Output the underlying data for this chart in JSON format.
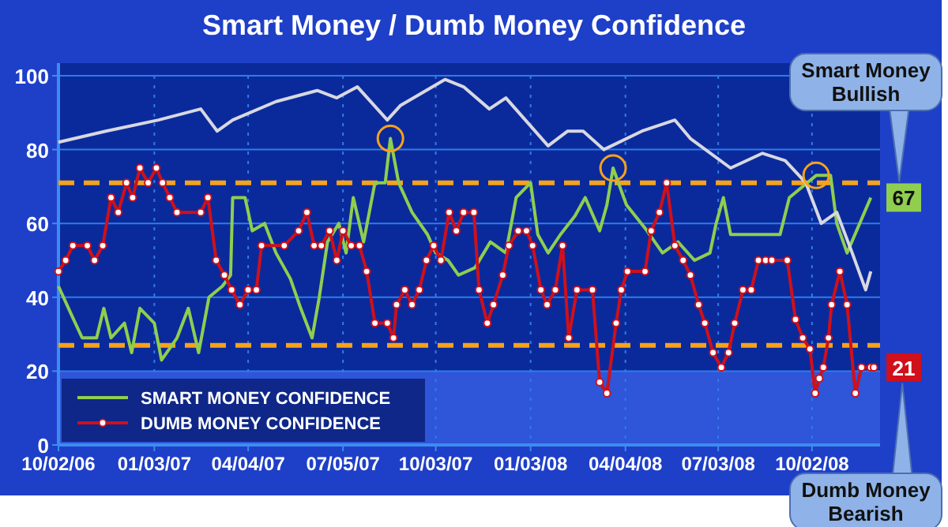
{
  "chart_data": {
    "type": "line",
    "title": "Smart Money / Dumb Money Confidence",
    "xlim": [
      "2006-10-02",
      "2008-12-07"
    ],
    "xticks": [
      {
        "value": "2006-10-02",
        "label": "10/02/06"
      },
      {
        "value": "2007-01-03",
        "label": "01/03/07"
      },
      {
        "value": "2007-04-04",
        "label": "04/04/07"
      },
      {
        "value": "2007-07-05",
        "label": "07/05/07"
      },
      {
        "value": "2007-10-03",
        "label": "10/03/07"
      },
      {
        "value": "2008-01-03",
        "label": "01/03/08"
      },
      {
        "value": "2008-04-04",
        "label": "04/04/08"
      },
      {
        "value": "2008-07-03",
        "label": "07/03/08"
      },
      {
        "value": "2008-10-02",
        "label": "10/02/08"
      }
    ],
    "ylim": [
      0,
      100
    ],
    "yticks": [
      0,
      20,
      40,
      60,
      80,
      100
    ],
    "grid": true,
    "legend": "bottom left",
    "ref_lines": [
      {
        "axis": "y",
        "value": 71,
        "color": "#f7a21b",
        "line_style": "dashed"
      },
      {
        "axis": "y",
        "value": 27,
        "color": "#f7a21b",
        "line_style": "dashed"
      }
    ],
    "bands": [
      {
        "axis": "y",
        "from": 0,
        "to": 20,
        "color": "#2f55d8"
      }
    ],
    "annotations": [
      "Smart Money Bullish",
      {
        "text": "67",
        "x": "2008-11-28",
        "y": 67
      },
      "Dumb Money Bearish",
      {
        "text": "21",
        "x": "2008-12-01",
        "y": 21
      }
    ],
    "series": [
      {
        "name": "SMART MONEY CONFIDENCE",
        "color": "#8fce4f",
        "marker": "none",
        "x": [
          "2006-10-02",
          "2006-10-15",
          "2006-10-25",
          "2006-11-08",
          "2006-11-15",
          "2006-11-22",
          "2006-12-05",
          "2006-12-12",
          "2006-12-20",
          "2007-01-03",
          "2007-01-10",
          "2007-01-25",
          "2007-02-05",
          "2007-02-15",
          "2007-02-25",
          "2007-03-10",
          "2007-03-18",
          "2007-03-20",
          "2007-04-01",
          "2007-04-08",
          "2007-04-20",
          "2007-05-01",
          "2007-05-15",
          "2007-05-25",
          "2007-06-05",
          "2007-06-12",
          "2007-06-20",
          "2007-07-01",
          "2007-07-08",
          "2007-07-15",
          "2007-07-25",
          "2007-08-05",
          "2007-08-15",
          "2007-08-20",
          "2007-08-28",
          "2007-09-10",
          "2007-09-25",
          "2007-10-03",
          "2007-10-15",
          "2007-10-25",
          "2007-11-10",
          "2007-11-25",
          "2007-12-10",
          "2007-12-20",
          "2008-01-03",
          "2008-01-10",
          "2008-01-20",
          "2008-02-01",
          "2008-02-15",
          "2008-02-25",
          "2008-03-10",
          "2008-03-17",
          "2008-03-23",
          "2008-04-05",
          "2008-04-25",
          "2008-05-10",
          "2008-05-25",
          "2008-06-10",
          "2008-06-25",
          "2008-07-01",
          "2008-07-08",
          "2008-07-15",
          "2008-09-01",
          "2008-09-10",
          "2008-10-06",
          "2008-10-20",
          "2008-10-26",
          "2008-11-05",
          "2008-11-28"
        ],
        "values": [
          43,
          35,
          29,
          29,
          37,
          29,
          33,
          25,
          37,
          33,
          23,
          29,
          37,
          25,
          40,
          43,
          46,
          67,
          67,
          58,
          60,
          52,
          45,
          37,
          29,
          40,
          55,
          60,
          52,
          67,
          55,
          71,
          71,
          83,
          71,
          63,
          57,
          52,
          50,
          46,
          48,
          55,
          52,
          67,
          71,
          57,
          52,
          57,
          62,
          67,
          58,
          65,
          75,
          65,
          58,
          52,
          55,
          50,
          52,
          60,
          67,
          57,
          57,
          67,
          73,
          73,
          60,
          52,
          67
        ]
      },
      {
        "name": "DUMB MONEY CONFIDENCE",
        "color": "#d0101a",
        "marker": "circle",
        "x": [
          "2006-10-02",
          "2006-10-09",
          "2006-10-16",
          "2006-10-30",
          "2006-11-06",
          "2006-11-14",
          "2006-11-22",
          "2006-11-29",
          "2006-12-07",
          "2006-12-13",
          "2006-12-20",
          "2006-12-28",
          "2007-01-05",
          "2007-01-11",
          "2007-01-18",
          "2007-01-25",
          "2007-02-17",
          "2007-02-24",
          "2007-03-04",
          "2007-03-12",
          "2007-03-19",
          "2007-03-27",
          "2007-04-04",
          "2007-04-12",
          "2007-04-17",
          "2007-05-09",
          "2007-05-23",
          "2007-05-31",
          "2007-06-07",
          "2007-06-14",
          "2007-06-22",
          "2007-06-29",
          "2007-07-05",
          "2007-07-13",
          "2007-07-21",
          "2007-07-28",
          "2007-08-05",
          "2007-08-17",
          "2007-08-23",
          "2007-08-26",
          "2007-09-03",
          "2007-09-10",
          "2007-09-17",
          "2007-09-24",
          "2007-10-01",
          "2007-10-08",
          "2007-10-16",
          "2007-10-23",
          "2007-10-30",
          "2007-11-09",
          "2007-11-14",
          "2007-11-22",
          "2007-11-28",
          "2007-12-07",
          "2007-12-13",
          "2007-12-22",
          "2007-12-30",
          "2008-01-05",
          "2008-01-13",
          "2008-01-19",
          "2008-01-27",
          "2008-02-03",
          "2008-02-09",
          "2008-02-17",
          "2008-03-03",
          "2008-03-10",
          "2008-03-17",
          "2008-03-26",
          "2008-03-31",
          "2008-04-06",
          "2008-04-23",
          "2008-04-29",
          "2008-05-07",
          "2008-05-14",
          "2008-05-22",
          "2008-05-30",
          "2008-06-06",
          "2008-06-14",
          "2008-06-20",
          "2008-06-28",
          "2008-07-06",
          "2008-07-13",
          "2008-07-19",
          "2008-07-27",
          "2008-08-04",
          "2008-08-11",
          "2008-08-18",
          "2008-08-24",
          "2008-09-08",
          "2008-09-16",
          "2008-09-23",
          "2008-09-30",
          "2008-10-05",
          "2008-10-09",
          "2008-10-13",
          "2008-10-18",
          "2008-10-21",
          "2008-10-29",
          "2008-11-05",
          "2008-11-13",
          "2008-11-19",
          "2008-11-28",
          "2008-12-01"
        ],
        "values": [
          47,
          50,
          54,
          54,
          50,
          54,
          67,
          63,
          71,
          67,
          75,
          71,
          75,
          71,
          67,
          63,
          63,
          67,
          50,
          46,
          42,
          38,
          42,
          42,
          54,
          54,
          58,
          63,
          54,
          54,
          58,
          50,
          58,
          54,
          54,
          47,
          33,
          33,
          29,
          38,
          42,
          38,
          42,
          50,
          54,
          50,
          63,
          58,
          63,
          63,
          42,
          33,
          38,
          46,
          54,
          58,
          58,
          54,
          42,
          38,
          42,
          54,
          29,
          42,
          42,
          17,
          14,
          33,
          42,
          47,
          47,
          58,
          63,
          71,
          54,
          50,
          46,
          38,
          33,
          25,
          21,
          25,
          33,
          42,
          42,
          50,
          50,
          50,
          50,
          34,
          29,
          26,
          14,
          18,
          21,
          29,
          38,
          47,
          38,
          14,
          21,
          21,
          21
        ]
      },
      {
        "color": "#d8d8e0",
        "marker": "none",
        "x": [
          "2006-10-02",
          "2006-11-17",
          "2007-01-07",
          "2007-02-17",
          "2007-03-05",
          "2007-03-20",
          "2007-05-01",
          "2007-06-10",
          "2007-06-29",
          "2007-07-19",
          "2007-08-17",
          "2007-08-30",
          "2007-10-12",
          "2007-10-30",
          "2007-11-24",
          "2007-12-10",
          "2008-01-20",
          "2008-02-08",
          "2008-02-23",
          "2008-03-14",
          "2008-04-20",
          "2008-05-22",
          "2008-06-06",
          "2008-07-15",
          "2008-08-15",
          "2008-09-06",
          "2008-09-26",
          "2008-10-11",
          "2008-10-26",
          "2008-11-10",
          "2008-11-23",
          "2008-11-28"
        ],
        "values": [
          82,
          85,
          88,
          91,
          85,
          88,
          93,
          96,
          94,
          97,
          88,
          92,
          99,
          97,
          91,
          94,
          81,
          85,
          85,
          80,
          85,
          88,
          83,
          75,
          79,
          77,
          71,
          60,
          63,
          52,
          42,
          47
        ]
      }
    ]
  }
}
